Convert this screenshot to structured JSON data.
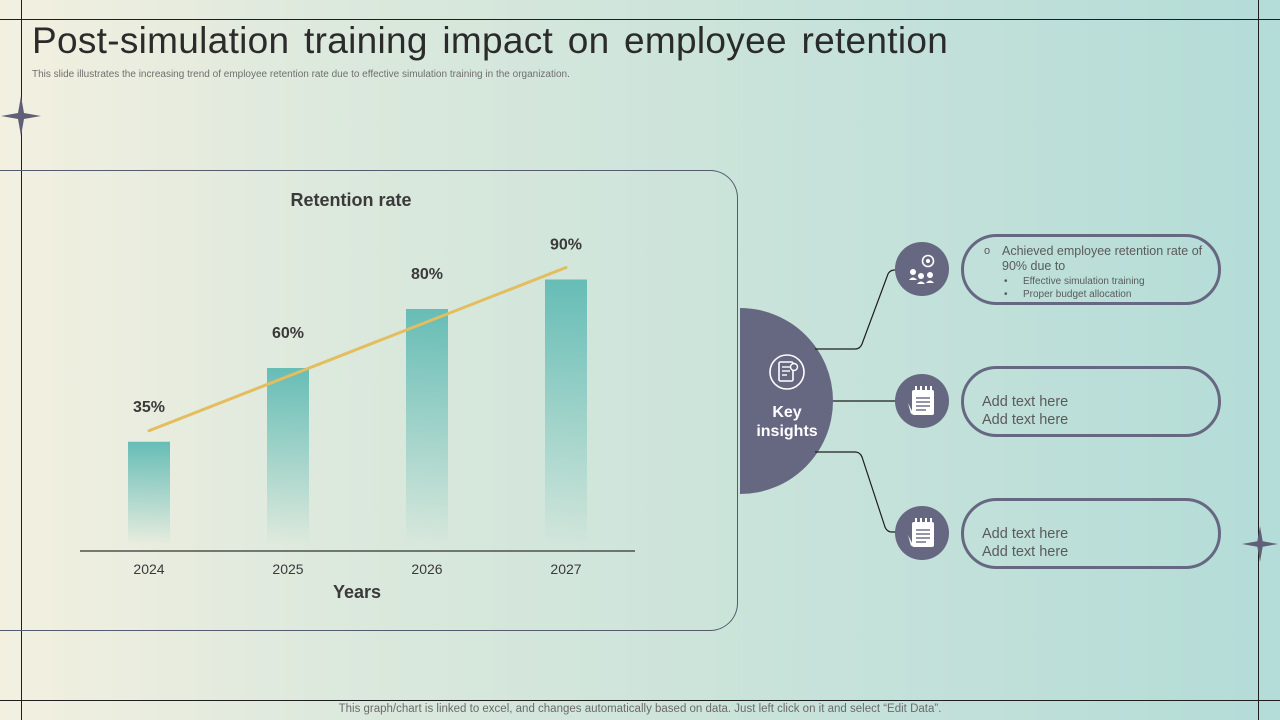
{
  "header": {
    "title": "Post-simulation training impact on employee retention",
    "subtitle": "This slide illustrates the increasing trend of employee retention rate due to effective simulation training in the organization."
  },
  "chart_data": {
    "type": "bar",
    "title": "Retention rate",
    "xlabel": "Years",
    "ylabel": "",
    "categories": [
      "2024",
      "2025",
      "2026",
      "2027"
    ],
    "values": [
      35,
      60,
      80,
      90
    ],
    "value_labels": [
      "35%",
      "60%",
      "80%",
      "90%"
    ],
    "ylim": [
      0,
      100
    ],
    "trendline": true,
    "colors": {
      "bar": "#66bdb6",
      "trend": "#e3bd5e",
      "axis": "#333333"
    }
  },
  "key_insights": {
    "label_line1": "Key",
    "label_line2": "insights",
    "items": [
      {
        "icon": "teamwork-target-icon",
        "heading": "Achieved employee retention rate of 90% due to",
        "bullets": [
          "Effective simulation training",
          "Proper budget allocation"
        ]
      },
      {
        "icon": "notepad-icon",
        "lines": [
          "Add text here",
          "Add text here"
        ]
      },
      {
        "icon": "notepad-icon",
        "lines": [
          "Add text here",
          "Add text here"
        ]
      }
    ]
  },
  "footer": {
    "note": "This graph/chart is linked to excel, and changes automatically based on data. Just left click on it and select “Edit Data”."
  },
  "theme": {
    "accent": "#666781",
    "bar": "#66bdb6",
    "trend": "#e3bd5e"
  }
}
